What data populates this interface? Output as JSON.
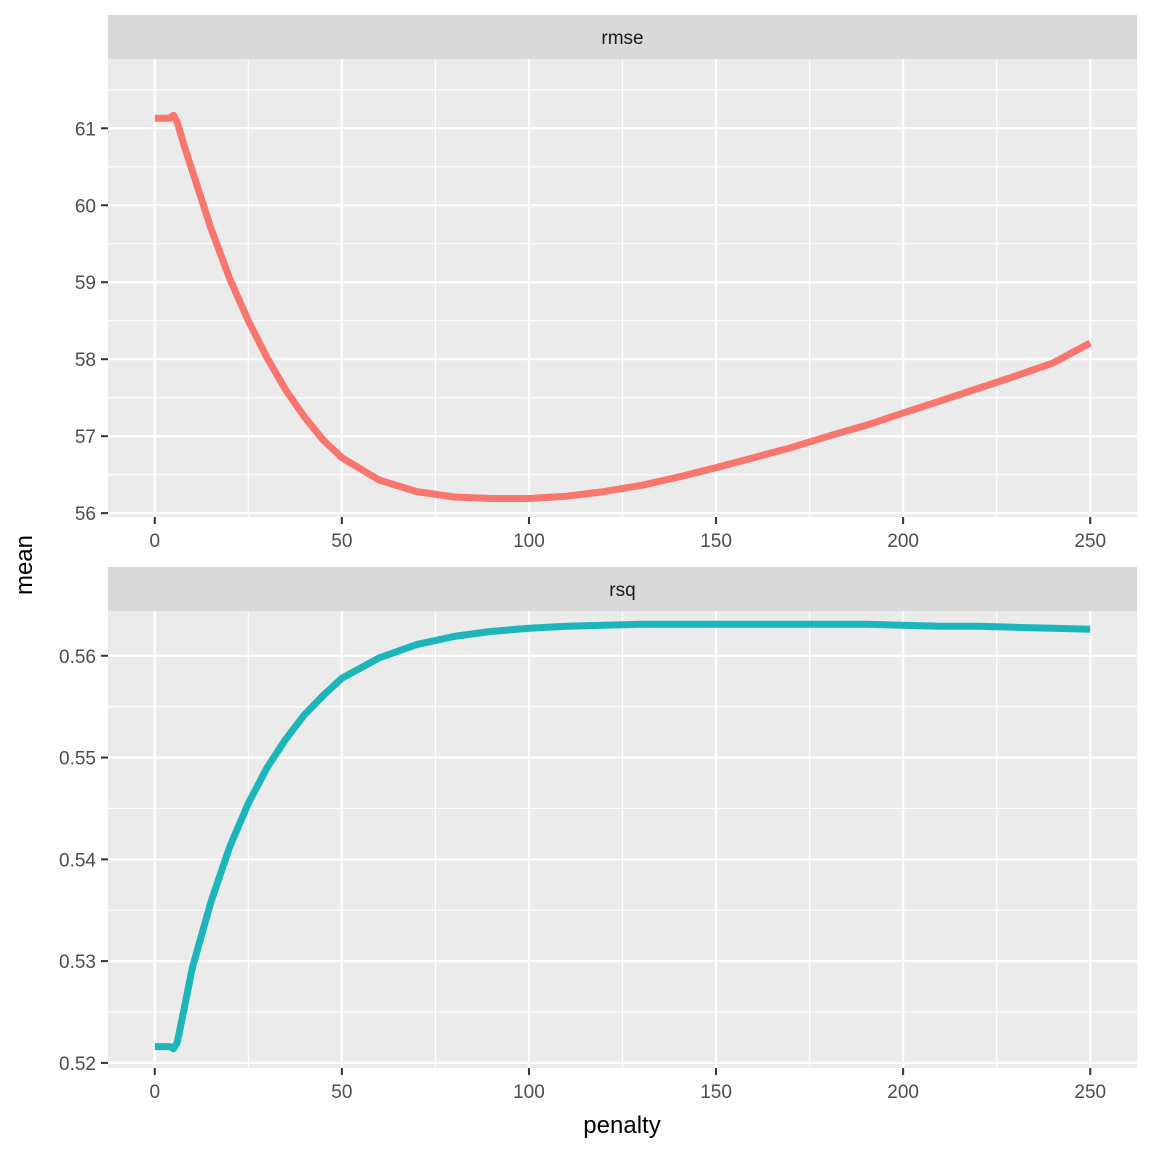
{
  "chart_data": {
    "type": "line",
    "xlabel": "penalty",
    "ylabel": "mean",
    "xlim": [
      -12.5,
      262.5
    ],
    "xticks": [
      0,
      50,
      100,
      150,
      200,
      250
    ],
    "xminor": [
      25,
      75,
      125,
      175,
      225
    ],
    "grid": true,
    "legend": "none",
    "panels": [
      {
        "strip": "rmse",
        "color": "#F8766D",
        "ylim": [
          55.95,
          61.9
        ],
        "yticks": [
          56,
          57,
          58,
          59,
          60,
          61
        ],
        "yminor": [
          56.5,
          57.5,
          58.5,
          59.5,
          60.5,
          61.5
        ],
        "x": [
          0,
          2,
          4,
          5,
          6,
          8,
          10,
          15,
          20,
          25,
          30,
          35,
          40,
          45,
          50,
          60,
          70,
          80,
          90,
          100,
          110,
          120,
          130,
          140,
          150,
          160,
          170,
          180,
          190,
          200,
          210,
          220,
          230,
          240,
          250
        ],
        "values": [
          61.13,
          61.13,
          61.13,
          61.17,
          61.08,
          60.75,
          60.45,
          59.7,
          59.05,
          58.5,
          58.02,
          57.6,
          57.25,
          56.95,
          56.72,
          56.43,
          56.28,
          56.21,
          56.19,
          56.19,
          56.22,
          56.28,
          56.36,
          56.47,
          56.59,
          56.72,
          56.85,
          57.0,
          57.14,
          57.3,
          57.46,
          57.62,
          57.78,
          57.95,
          58.21
        ]
      },
      {
        "strip": "rsq",
        "color": "#1CB5B9",
        "ylim": [
          0.5195,
          0.5644
        ],
        "yticks": [
          0.52,
          0.53,
          0.54,
          0.55,
          0.56
        ],
        "yticklabels": [
          "0.52",
          "0.53",
          "0.54",
          "0.55",
          "0.56"
        ],
        "yminor": [
          0.525,
          0.535,
          0.545,
          0.555
        ],
        "x": [
          0,
          2,
          4,
          5,
          6,
          8,
          10,
          15,
          20,
          25,
          30,
          35,
          40,
          45,
          50,
          60,
          70,
          80,
          90,
          100,
          110,
          120,
          130,
          140,
          150,
          160,
          170,
          180,
          190,
          200,
          210,
          220,
          230,
          240,
          250
        ],
        "values": [
          0.5216,
          0.5216,
          0.5216,
          0.5214,
          0.522,
          0.5256,
          0.5293,
          0.5358,
          0.5412,
          0.5455,
          0.549,
          0.5518,
          0.5542,
          0.5561,
          0.5578,
          0.5598,
          0.5611,
          0.5619,
          0.5624,
          0.5627,
          0.5629,
          0.563,
          0.5631,
          0.5631,
          0.5631,
          0.5631,
          0.5631,
          0.5631,
          0.5631,
          0.563,
          0.5629,
          0.5629,
          0.5628,
          0.5627,
          0.5626
        ]
      }
    ]
  }
}
